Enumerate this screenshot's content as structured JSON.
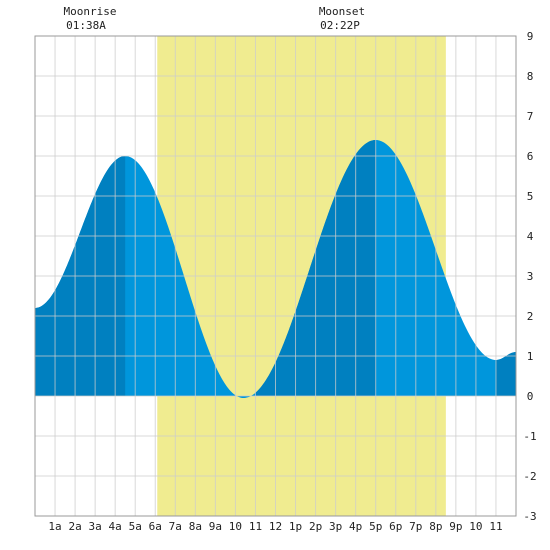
{
  "chart_data": {
    "type": "area",
    "x_unit": "hour of day",
    "ylim": [
      -3,
      9
    ],
    "xlim": [
      0,
      24
    ],
    "y_ticks": [
      "-3",
      "-2",
      "-1",
      "0",
      "1",
      "2",
      "3",
      "4",
      "5",
      "6",
      "7",
      "8",
      "9"
    ],
    "x_ticks": [
      "1a",
      "2a",
      "3a",
      "4a",
      "5a",
      "6a",
      "7a",
      "8a",
      "9a",
      "10",
      "11",
      "12",
      "1p",
      "2p",
      "3p",
      "4p",
      "5p",
      "6p",
      "7p",
      "8p",
      "9p",
      "10",
      "11"
    ],
    "grid": true,
    "daylight": {
      "start_hour": 6.1,
      "end_hour": 20.5
    },
    "tide_extremes": [
      {
        "hour": 0.0,
        "height": 2.2,
        "type": "start"
      },
      {
        "hour": 4.5,
        "height": 6.0,
        "type": "high"
      },
      {
        "hour": 10.4,
        "height": -0.05,
        "type": "low"
      },
      {
        "hour": 17.0,
        "height": 6.4,
        "type": "high"
      },
      {
        "hour": 23.0,
        "height": 0.9,
        "type": "low"
      },
      {
        "hour": 24.0,
        "height": 1.1,
        "type": "end"
      }
    ],
    "darker_shading_intervals": [
      [
        0,
        4.5
      ],
      [
        11.0,
        17.0
      ],
      [
        23.0,
        24.0
      ]
    ],
    "colors": {
      "daylight": "#f0ec90",
      "tide_light": "#0096dc",
      "tide_dark": "#0080c0",
      "grid": "#cccccc"
    }
  },
  "moon": {
    "rise": {
      "label": "Moonrise",
      "time": "01:38A"
    },
    "set": {
      "label": "Moonset",
      "time": "02:22P"
    }
  }
}
